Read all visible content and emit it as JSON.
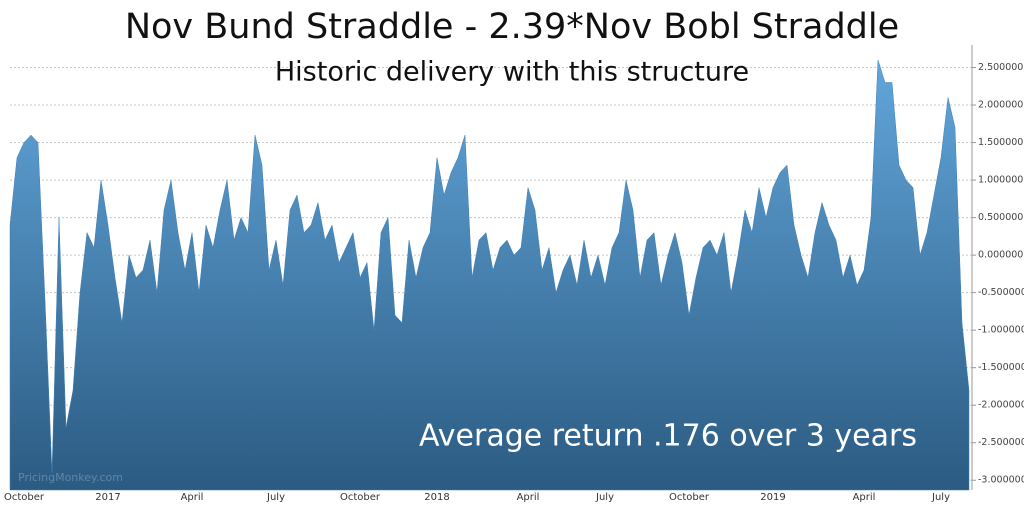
{
  "chart_data": {
    "type": "area",
    "title": "Nov Bund Straddle - 2.39*Nov Bobl Straddle",
    "subtitle": "Historic delivery with this structure",
    "annotation": "Average return .176 over 3 years",
    "watermark": "PricingMonkey.com",
    "color": "#3d7fb8",
    "grid": true,
    "ylim": [
      -3.13,
      2.8
    ],
    "yticks": [
      {
        "value": 2.5,
        "label": "2.500000"
      },
      {
        "value": 2.0,
        "label": "2.000000"
      },
      {
        "value": 1.5,
        "label": "1.500000"
      },
      {
        "value": 1.0,
        "label": "1.000000"
      },
      {
        "value": 0.5,
        "label": "0.500000"
      },
      {
        "value": 0,
        "label": "0.000000"
      },
      {
        "value": -0.5,
        "label": "-0.500000"
      },
      {
        "value": -1.0,
        "label": "-1.000000"
      },
      {
        "value": -1.5,
        "label": "-1.500000"
      },
      {
        "value": -2.0,
        "label": "-2.000000"
      },
      {
        "value": -2.5,
        "label": "-2.500000"
      },
      {
        "value": -3.0,
        "label": "-3.000000"
      }
    ],
    "categories": [
      null,
      null,
      "October",
      null,
      null,
      null,
      null,
      null,
      null,
      null,
      null,
      null,
      null,
      null,
      "2017",
      null,
      null,
      null,
      null,
      null,
      null,
      null,
      null,
      null,
      null,
      null,
      "April",
      null,
      null,
      null,
      null,
      null,
      null,
      null,
      null,
      null,
      null,
      null,
      "July",
      null,
      null,
      null,
      null,
      null,
      null,
      null,
      null,
      null,
      null,
      null,
      "October",
      null,
      null,
      null,
      null,
      null,
      null,
      null,
      null,
      null,
      null,
      "2018",
      null,
      null,
      null,
      null,
      null,
      null,
      null,
      null,
      null,
      null,
      null,
      null,
      "April",
      null,
      null,
      null,
      null,
      null,
      null,
      null,
      null,
      null,
      null,
      "July",
      null,
      null,
      null,
      null,
      null,
      null,
      null,
      null,
      null,
      null,
      null,
      "October",
      null,
      null,
      null,
      null,
      null,
      null,
      null,
      null,
      null,
      null,
      null,
      "2019",
      null,
      null,
      null,
      null,
      null,
      null,
      null,
      null,
      null,
      null,
      null,
      null,
      "April",
      null,
      null,
      null,
      null,
      null,
      null,
      null,
      null,
      null,
      null,
      "July",
      null,
      null,
      null,
      null
    ],
    "values": [
      0.4,
      1.3,
      1.5,
      1.6,
      1.5,
      -0.6,
      -2.9,
      0.5,
      -2.3,
      -1.8,
      -0.5,
      0.3,
      0.1,
      1.0,
      0.4,
      -0.3,
      -0.9,
      0.0,
      -0.3,
      -0.2,
      0.2,
      -0.5,
      0.6,
      1.0,
      0.3,
      -0.2,
      0.3,
      -0.5,
      0.4,
      0.1,
      0.6,
      1.0,
      0.2,
      0.5,
      0.3,
      1.6,
      1.2,
      -0.2,
      0.2,
      -0.4,
      0.6,
      0.8,
      0.3,
      0.4,
      0.7,
      0.2,
      0.4,
      -0.1,
      0.1,
      0.3,
      -0.3,
      -0.1,
      -1.0,
      0.3,
      0.5,
      -0.8,
      -0.9,
      0.2,
      -0.3,
      0.1,
      0.3,
      1.3,
      0.8,
      1.1,
      1.3,
      1.6,
      -0.3,
      0.2,
      0.3,
      -0.2,
      0.1,
      0.2,
      0.0,
      0.1,
      0.9,
      0.6,
      -0.2,
      0.1,
      -0.5,
      -0.2,
      0.0,
      -0.4,
      0.2,
      -0.3,
      0.0,
      -0.4,
      0.1,
      0.3,
      1.0,
      0.6,
      -0.3,
      0.2,
      0.3,
      -0.4,
      0.0,
      0.3,
      -0.1,
      -0.8,
      -0.3,
      0.1,
      0.2,
      0.0,
      0.3,
      -0.5,
      0.0,
      0.6,
      0.3,
      0.9,
      0.5,
      0.9,
      1.1,
      1.2,
      0.4,
      0.0,
      -0.3,
      0.3,
      0.7,
      0.4,
      0.2,
      -0.3,
      0.0,
      -0.4,
      -0.2,
      0.5,
      2.6,
      2.3,
      2.3,
      1.2,
      1.0,
      0.9,
      0.0,
      0.3,
      0.8,
      1.3,
      2.1,
      1.7,
      -0.9,
      -1.8
    ]
  }
}
